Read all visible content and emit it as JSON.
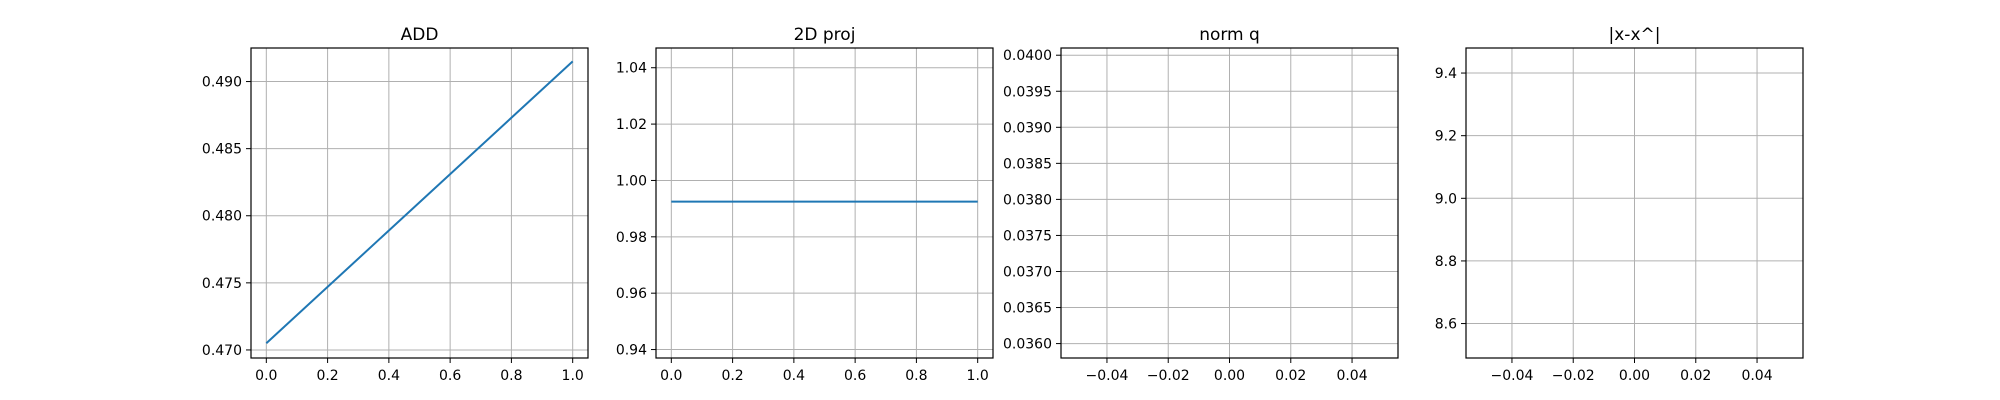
{
  "chart_data": [
    {
      "type": "line",
      "title": "ADD",
      "xlabel": "",
      "ylabel": "",
      "grid": true,
      "xlim": [
        -0.05,
        1.05
      ],
      "ylim": [
        0.4694,
        0.4925
      ],
      "xticks": [
        "0.0",
        "0.2",
        "0.4",
        "0.6",
        "0.8",
        "1.0"
      ],
      "yticks": [
        "0.470",
        "0.475",
        "0.480",
        "0.485",
        "0.490"
      ],
      "series": [
        {
          "color": "#1f77b4",
          "x": [
            0,
            1
          ],
          "y": [
            0.4705,
            0.4915
          ]
        }
      ]
    },
    {
      "type": "line",
      "title": "2D proj",
      "xlabel": "",
      "ylabel": "",
      "grid": true,
      "xlim": [
        -0.05,
        1.05
      ],
      "ylim": [
        0.937,
        1.047
      ],
      "xticks": [
        "0.0",
        "0.2",
        "0.4",
        "0.6",
        "0.8",
        "1.0"
      ],
      "yticks": [
        "0.94",
        "0.96",
        "0.98",
        "1.00",
        "1.02",
        "1.04"
      ],
      "series": [
        {
          "color": "#1f77b4",
          "x": [
            0,
            1
          ],
          "y": [
            0.9925,
            0.9925
          ]
        }
      ]
    },
    {
      "type": "line",
      "title": "norm q",
      "xlabel": "",
      "ylabel": "",
      "grid": true,
      "xlim": [
        -0.055,
        0.055
      ],
      "ylim": [
        0.0358,
        0.0401
      ],
      "xticks": [
        "−0.04",
        "−0.02",
        "0.00",
        "0.02",
        "0.04"
      ],
      "yticks": [
        "0.0360",
        "0.0365",
        "0.0370",
        "0.0375",
        "0.0380",
        "0.0385",
        "0.0390",
        "0.0395",
        "0.0400"
      ],
      "series": []
    },
    {
      "type": "line",
      "title": "|x-x^|",
      "xlabel": "",
      "ylabel": "",
      "grid": true,
      "xlim": [
        -0.055,
        0.055
      ],
      "ylim": [
        8.49,
        9.48
      ],
      "xticks": [
        "−0.04",
        "−0.02",
        "0.00",
        "0.02",
        "0.04"
      ],
      "yticks": [
        "8.6",
        "8.8",
        "9.0",
        "9.2",
        "9.4"
      ],
      "series": []
    }
  ]
}
